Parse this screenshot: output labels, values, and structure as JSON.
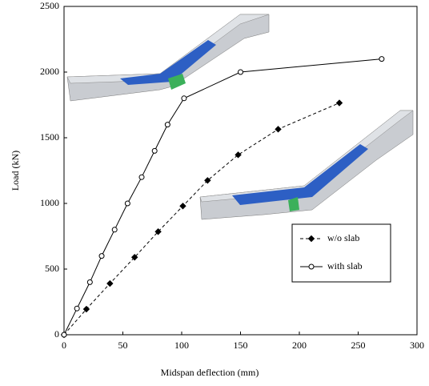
{
  "chart_data": {
    "type": "line",
    "xlabel": "Midspan deflection (mm)",
    "ylabel": "Load (kN)",
    "xlim": [
      0,
      300
    ],
    "xticks": [
      0,
      50,
      100,
      150,
      200,
      250,
      300
    ],
    "ylim": [
      0,
      2500
    ],
    "yticks": [
      0,
      500,
      1000,
      1500,
      2000,
      2500
    ],
    "legend": "center right",
    "series": [
      {
        "name": "w/o slab",
        "color": "#000000",
        "dash": "dashed",
        "marker": "diamond",
        "x": [
          0,
          19,
          39,
          60,
          80,
          101,
          122,
          148,
          182,
          234
        ],
        "values": [
          0,
          195,
          390,
          590,
          785,
          980,
          1175,
          1370,
          1565,
          1765
        ]
      },
      {
        "name": "with slab",
        "color": "#000000",
        "dash": "solid",
        "marker": "circle",
        "x": [
          0,
          11,
          22,
          32,
          43,
          54,
          66,
          77,
          88,
          102,
          150,
          270
        ],
        "values": [
          0,
          200,
          400,
          600,
          800,
          1000,
          1200,
          1400,
          1600,
          1800,
          2000,
          2100
        ]
      }
    ]
  }
}
